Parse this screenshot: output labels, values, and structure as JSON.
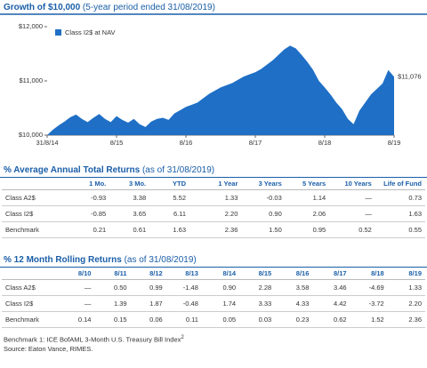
{
  "chart_data": {
    "type": "area",
    "title": "Growth of $10,000",
    "subtitle": "(5-year period ended 31/08/2019)",
    "categories": [
      "31/8/14",
      null,
      null,
      null,
      null,
      null,
      null,
      null,
      null,
      null,
      null,
      null,
      "8/15",
      null,
      null,
      null,
      null,
      null,
      null,
      null,
      null,
      null,
      null,
      null,
      "8/16",
      null,
      null,
      null,
      null,
      null,
      null,
      null,
      null,
      null,
      null,
      null,
      "8/17",
      null,
      null,
      null,
      null,
      null,
      null,
      null,
      null,
      null,
      null,
      null,
      "8/18",
      null,
      null,
      null,
      null,
      null,
      null,
      null,
      null,
      null,
      null,
      null,
      "8/19"
    ],
    "series": [
      {
        "name": "Class I2$ at NAV",
        "color": "#1f6fc6",
        "values": [
          10000,
          10100,
          10180,
          10250,
          10330,
          10380,
          10300,
          10240,
          10320,
          10390,
          10300,
          10240,
          10350,
          10280,
          10230,
          10300,
          10200,
          10150,
          10250,
          10300,
          10320,
          10280,
          10400,
          10460,
          10520,
          10560,
          10600,
          10680,
          10760,
          10820,
          10880,
          10920,
          10960,
          11020,
          11080,
          11120,
          11160,
          11220,
          11300,
          11380,
          11480,
          11580,
          11650,
          11600,
          11480,
          11350,
          11200,
          11000,
          10880,
          10750,
          10600,
          10480,
          10300,
          10200,
          10450,
          10600,
          10750,
          10850,
          10950,
          11200,
          11076
        ]
      }
    ],
    "end_label": "$11,076",
    "ylim": [
      10000,
      12000
    ],
    "yticks": [
      {
        "value": 10000,
        "label": "$10,000"
      },
      {
        "value": 11000,
        "label": "$11,000"
      },
      {
        "value": 12000,
        "label": "$12,000"
      }
    ]
  },
  "returns_table": {
    "title": "% Average Annual Total Returns",
    "subtitle": "(as of 31/08/2019)",
    "columns": [
      "1 Mo.",
      "3 Mo.",
      "YTD",
      "1 Year",
      "3 Years",
      "5 Years",
      "10 Years",
      "Life of Fund"
    ],
    "rows": [
      [
        "Class A2$",
        "-0.93",
        "3.38",
        "5.52",
        "1.33",
        "-0.03",
        "1.14",
        "—",
        "0.73"
      ],
      [
        "Class I2$",
        "-0.85",
        "3.65",
        "6.11",
        "2.20",
        "0.90",
        "2.06",
        "—",
        "1.63"
      ],
      [
        "Benchmark",
        "0.21",
        "0.61",
        "1.63",
        "2.36",
        "1.50",
        "0.95",
        "0.52",
        "0.55"
      ]
    ]
  },
  "rolling_table": {
    "title": "% 12 Month Rolling Returns",
    "subtitle": "(as of 31/08/2019)",
    "columns": [
      "8/10",
      "8/11",
      "8/12",
      "8/13",
      "8/14",
      "8/15",
      "8/16",
      "8/17",
      "8/18",
      "8/19"
    ],
    "rows": [
      [
        "Class A2$",
        "—",
        "0.50",
        "0.99",
        "-1.48",
        "0.90",
        "2.28",
        "3.58",
        "3.46",
        "-4.69",
        "1.33"
      ],
      [
        "Class I2$",
        "—",
        "1.39",
        "1.87",
        "-0.48",
        "1.74",
        "3.33",
        "4.33",
        "4.42",
        "-3.72",
        "2.20"
      ],
      [
        "Benchmark",
        "0.14",
        "0.15",
        "0.06",
        "0.11",
        "0.05",
        "0.03",
        "0.23",
        "0.62",
        "1.52",
        "2.36"
      ]
    ]
  },
  "footnotes": {
    "benchmark": "Benchmark 1: ICE BofAML 3-Month U.S. Treasury Bill Index",
    "superscript": "2",
    "source": "Source: Eaton Vance, RIMES."
  }
}
